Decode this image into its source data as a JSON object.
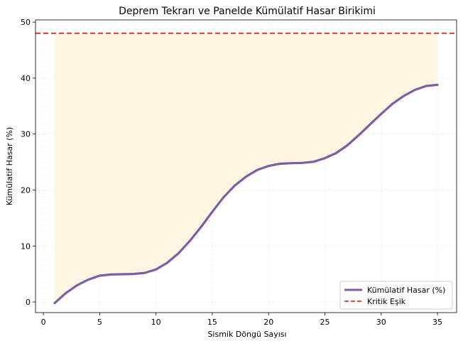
{
  "chart_data": {
    "type": "line",
    "title": "Deprem Tekrarı ve Panelde Kümülatif Hasar Birikimi",
    "xlabel": "Sismik Döngü Sayısı",
    "ylabel": "Kümülatif Hasar (%)",
    "xlim": [
      -0.7,
      36.7
    ],
    "ylim": [
      -1.9,
      50.4
    ],
    "xticks": [
      0,
      5,
      10,
      15,
      20,
      25,
      30,
      35
    ],
    "yticks": [
      0,
      10,
      20,
      30,
      40,
      50
    ],
    "grid": true,
    "legend_position": "lower-right",
    "series": [
      {
        "name": "Kümülatif Hasar (%)",
        "color": "#7b5ea7",
        "x": [
          1,
          2,
          3,
          4,
          5,
          6,
          7,
          8,
          9,
          10,
          11,
          12,
          13,
          14,
          15,
          16,
          17,
          18,
          19,
          20,
          21,
          22,
          23,
          24,
          25,
          26,
          27,
          28,
          29,
          30,
          31,
          32,
          33,
          34,
          35
        ],
        "values": [
          -0.2,
          1.6,
          3.0,
          4.0,
          4.7,
          4.9,
          4.95,
          5.0,
          5.2,
          5.8,
          7.0,
          8.7,
          10.9,
          13.4,
          16.1,
          18.7,
          20.8,
          22.4,
          23.6,
          24.3,
          24.7,
          24.8,
          24.85,
          25.05,
          25.7,
          26.6,
          28.0,
          29.8,
          31.7,
          33.6,
          35.4,
          36.8,
          37.9,
          38.6,
          38.8
        ]
      },
      {
        "name": "Kritik Eşik",
        "color": "#ee4444",
        "style": "dashed",
        "constant": 48
      }
    ],
    "fill_between": {
      "from_series": "Kümülatif Hasar (%)",
      "to": 48,
      "color": "#fdf5e2"
    }
  }
}
